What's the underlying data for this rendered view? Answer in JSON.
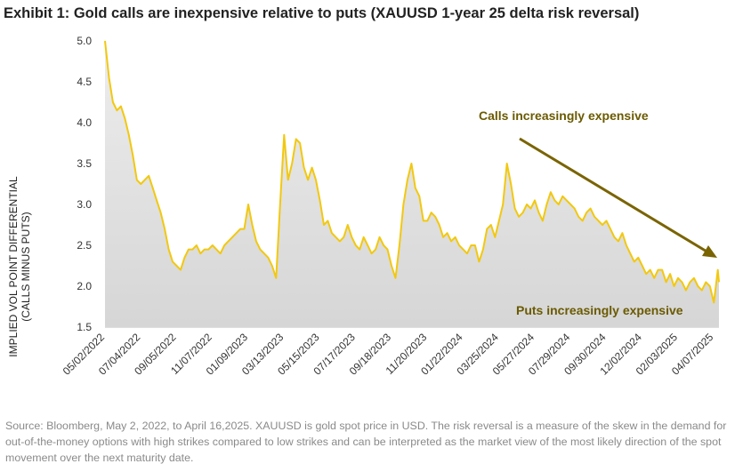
{
  "title": "Exhibit 1: Gold calls are inexpensive relative to puts (XAUUSD 1-year 25 delta risk reversal)",
  "ylabel_line1": "IMPLIED VOL POINT DIFFERENTIAL",
  "ylabel_line2": "(CALLS MINUS PUTS)",
  "annotations": {
    "calls": "Calls increasingly expensive",
    "puts": "Puts increasingly expensive"
  },
  "source": "Source: Bloomberg, May 2, 2022, to April 16,2025. XAUUSD is gold spot price in USD. The risk reversal is a measure of the skew in the demand for out-of-the-money options with high strikes compared to low strikes and can be interpreted as the market view of the most likely direction of the spot movement over the next maturity date.",
  "colors": {
    "line": "#f2c80f",
    "fill": "#dcdcdc",
    "arrow": "#7a6400",
    "annotation": "#6b5a00"
  },
  "chart_data": {
    "type": "area",
    "ylim": [
      1.5,
      5.0
    ],
    "yticks": [
      "1.5",
      "2.0",
      "2.5",
      "3.0",
      "3.5",
      "4.0",
      "4.5",
      "5.0"
    ],
    "xlim": [
      "2022-05-02",
      "2025-04-16"
    ],
    "xticks": [
      "05/02/2022",
      "07/04/2022",
      "09/05/2022",
      "11/07/2022",
      "01/09/2023",
      "03/13/2023",
      "05/15/2023",
      "07/17/2023",
      "09/18/2023",
      "11/20/2023",
      "01/22/2024",
      "03/25/2024",
      "05/27/2024",
      "07/29/2024",
      "09/30/2024",
      "12/02/2024",
      "02/03/2025",
      "04/07/2025"
    ],
    "series": [
      {
        "x": [
          "2022-05-02",
          "2022-05-09",
          "2022-05-16",
          "2022-05-23",
          "2022-05-30",
          "2022-06-06",
          "2022-06-13",
          "2022-06-20",
          "2022-06-27",
          "2022-07-04",
          "2022-07-11",
          "2022-07-18",
          "2022-07-25",
          "2022-08-01",
          "2022-08-08",
          "2022-08-15",
          "2022-08-22",
          "2022-08-29",
          "2022-09-05",
          "2022-09-12",
          "2022-09-19",
          "2022-09-26",
          "2022-10-03",
          "2022-10-10",
          "2022-10-17",
          "2022-10-24",
          "2022-10-31",
          "2022-11-07",
          "2022-11-14",
          "2022-11-21",
          "2022-11-28",
          "2022-12-05",
          "2022-12-12",
          "2022-12-19",
          "2022-12-26",
          "2023-01-02",
          "2023-01-09",
          "2023-01-16",
          "2023-01-23",
          "2023-01-30",
          "2023-02-06",
          "2023-02-13",
          "2023-02-20",
          "2023-02-27",
          "2023-03-06",
          "2023-03-13",
          "2023-03-20",
          "2023-03-27",
          "2023-04-03",
          "2023-04-10",
          "2023-04-17",
          "2023-04-24",
          "2023-05-01",
          "2023-05-08",
          "2023-05-15",
          "2023-05-22",
          "2023-05-29",
          "2023-06-05",
          "2023-06-12",
          "2023-06-19",
          "2023-06-26",
          "2023-07-03",
          "2023-07-10",
          "2023-07-17",
          "2023-07-24",
          "2023-07-31",
          "2023-08-07",
          "2023-08-14",
          "2023-08-21",
          "2023-08-28",
          "2023-09-04",
          "2023-09-11",
          "2023-09-18",
          "2023-09-25",
          "2023-10-02",
          "2023-10-09",
          "2023-10-16",
          "2023-10-23",
          "2023-10-30",
          "2023-11-06",
          "2023-11-13",
          "2023-11-20",
          "2023-11-27",
          "2023-12-04",
          "2023-12-11",
          "2023-12-18",
          "2023-12-25",
          "2024-01-01",
          "2024-01-08",
          "2024-01-15",
          "2024-01-22",
          "2024-01-29",
          "2024-02-05",
          "2024-02-12",
          "2024-02-19",
          "2024-02-26",
          "2024-03-04",
          "2024-03-11",
          "2024-03-18",
          "2024-03-25",
          "2024-04-01",
          "2024-04-08",
          "2024-04-15",
          "2024-04-22",
          "2024-04-29",
          "2024-05-06",
          "2024-05-13",
          "2024-05-20",
          "2024-05-27",
          "2024-06-03",
          "2024-06-10",
          "2024-06-17",
          "2024-06-24",
          "2024-07-01",
          "2024-07-08",
          "2024-07-15",
          "2024-07-22",
          "2024-07-29",
          "2024-08-05",
          "2024-08-12",
          "2024-08-19",
          "2024-08-26",
          "2024-09-02",
          "2024-09-09",
          "2024-09-16",
          "2024-09-23",
          "2024-09-30",
          "2024-10-07",
          "2024-10-14",
          "2024-10-21",
          "2024-10-28",
          "2024-11-04",
          "2024-11-11",
          "2024-11-18",
          "2024-11-25",
          "2024-12-02",
          "2024-12-09",
          "2024-12-16",
          "2024-12-23",
          "2024-12-30",
          "2025-01-06",
          "2025-01-13",
          "2025-01-20",
          "2025-01-27",
          "2025-02-03",
          "2025-02-10",
          "2025-02-17",
          "2025-02-24",
          "2025-03-03",
          "2025-03-10",
          "2025-03-17",
          "2025-03-24",
          "2025-03-31",
          "2025-04-07",
          "2025-04-14",
          "2025-04-16"
        ],
        "y": [
          5.0,
          4.55,
          4.25,
          4.15,
          4.2,
          4.05,
          3.85,
          3.6,
          3.3,
          3.25,
          3.3,
          3.35,
          3.2,
          3.05,
          2.9,
          2.7,
          2.45,
          2.3,
          2.25,
          2.2,
          2.35,
          2.45,
          2.45,
          2.5,
          2.4,
          2.45,
          2.45,
          2.5,
          2.45,
          2.4,
          2.5,
          2.55,
          2.6,
          2.65,
          2.7,
          2.7,
          3.0,
          2.75,
          2.55,
          2.45,
          2.4,
          2.35,
          2.25,
          2.1,
          3.0,
          3.85,
          3.3,
          3.5,
          3.8,
          3.75,
          3.45,
          3.3,
          3.45,
          3.3,
          3.05,
          2.75,
          2.8,
          2.65,
          2.6,
          2.55,
          2.6,
          2.75,
          2.6,
          2.5,
          2.45,
          2.6,
          2.5,
          2.4,
          2.45,
          2.6,
          2.5,
          2.45,
          2.25,
          2.1,
          2.5,
          3.0,
          3.3,
          3.5,
          3.2,
          3.1,
          2.8,
          2.8,
          2.9,
          2.85,
          2.75,
          2.6,
          2.65,
          2.55,
          2.6,
          2.5,
          2.45,
          2.4,
          2.5,
          2.5,
          2.3,
          2.45,
          2.7,
          2.75,
          2.6,
          2.8,
          3.0,
          3.5,
          3.25,
          2.95,
          2.85,
          2.9,
          3.0,
          2.95,
          3.05,
          2.9,
          2.8,
          3.0,
          3.15,
          3.05,
          3.0,
          3.1,
          3.05,
          3.0,
          2.95,
          2.85,
          2.8,
          2.9,
          2.95,
          2.85,
          2.8,
          2.75,
          2.8,
          2.7,
          2.6,
          2.55,
          2.65,
          2.5,
          2.4,
          2.3,
          2.35,
          2.25,
          2.15,
          2.2,
          2.1,
          2.2,
          2.2,
          2.05,
          2.15,
          2.0,
          2.1,
          2.05,
          1.95,
          2.05,
          2.1,
          2.0,
          1.95,
          2.05,
          2.0,
          1.8,
          2.2,
          2.05
        ]
      }
    ]
  }
}
